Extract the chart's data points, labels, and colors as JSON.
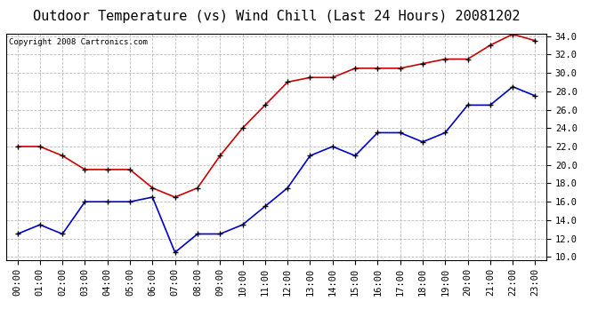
{
  "title": "Outdoor Temperature (vs) Wind Chill (Last 24 Hours) 20081202",
  "copyright": "Copyright 2008 Cartronics.com",
  "hours": [
    "00:00",
    "01:00",
    "02:00",
    "03:00",
    "04:00",
    "05:00",
    "06:00",
    "07:00",
    "08:00",
    "09:00",
    "10:00",
    "11:00",
    "12:00",
    "13:00",
    "14:00",
    "15:00",
    "16:00",
    "17:00",
    "18:00",
    "19:00",
    "20:00",
    "21:00",
    "22:00",
    "23:00"
  ],
  "temp": [
    22.0,
    22.0,
    21.0,
    19.5,
    19.5,
    19.5,
    17.5,
    16.5,
    17.5,
    21.0,
    24.0,
    26.5,
    29.0,
    29.5,
    29.5,
    30.5,
    30.5,
    30.5,
    31.0,
    31.5,
    31.5,
    33.0,
    34.2,
    33.5
  ],
  "wind_chill": [
    12.5,
    13.5,
    12.5,
    16.0,
    16.0,
    16.0,
    16.5,
    10.5,
    12.5,
    12.5,
    13.5,
    15.5,
    17.5,
    21.0,
    22.0,
    21.0,
    23.5,
    23.5,
    22.5,
    23.5,
    26.5,
    26.5,
    28.5,
    27.5
  ],
  "temp_color": "#cc0000",
  "wind_chill_color": "#0000cc",
  "bg_color": "#ffffff",
  "grid_color": "#bbbbbb",
  "ylim_min": 10.0,
  "ylim_max": 34.0,
  "yticks": [
    10.0,
    12.0,
    14.0,
    16.0,
    18.0,
    20.0,
    22.0,
    24.0,
    26.0,
    28.0,
    30.0,
    32.0,
    34.0
  ],
  "title_fontsize": 11,
  "copyright_fontsize": 6.5,
  "tick_fontsize": 7.5
}
